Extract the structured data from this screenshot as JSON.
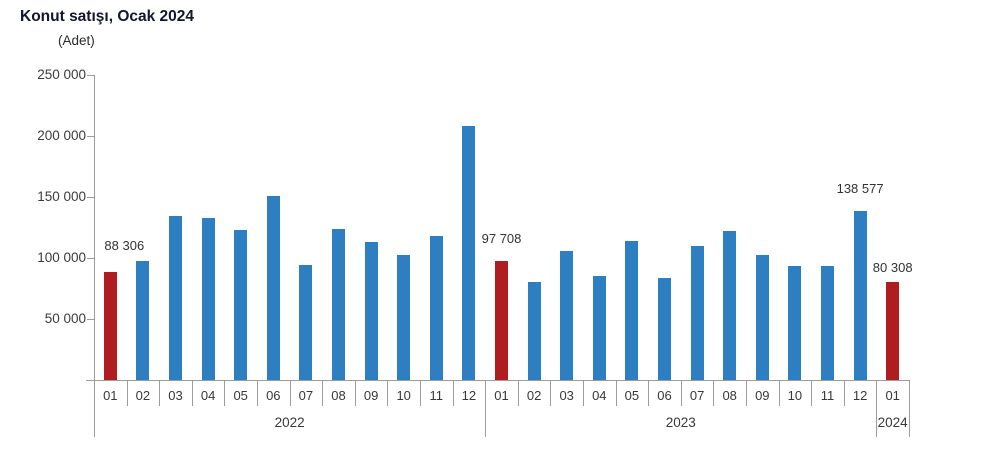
{
  "page": {
    "title": "Konut satışı, Ocak 2024",
    "unit_label": "(Adet)"
  },
  "colors": {
    "bar_default": "#2d7fc1",
    "bar_highlight": "#b01d21",
    "axis_line": "#9c9c9c",
    "tick_text": "#3b3b3b",
    "annotation_text": "#333333",
    "title_text": "#14142e"
  },
  "chart_data": {
    "type": "bar",
    "title": "Konut satışı, Ocak 2024",
    "ylabel": "(Adet)",
    "xlabel": "",
    "ylim": [
      0,
      250000
    ],
    "ytick_interval": 50000,
    "grid": false,
    "legend": "none",
    "yticks": [
      {
        "value": 250000,
        "label": "250 000"
      },
      {
        "value": 200000,
        "label": "200 000"
      },
      {
        "value": 150000,
        "label": "150 000"
      },
      {
        "value": 100000,
        "label": "100 000"
      },
      {
        "value": 50000,
        "label": "50 000"
      }
    ],
    "year_groups": [
      {
        "label": "2022",
        "span": 12
      },
      {
        "label": "2023",
        "span": 12
      },
      {
        "label": "2024",
        "span": 1
      }
    ],
    "points": [
      {
        "year": "2022",
        "month": "01",
        "value": 88306,
        "highlight": true,
        "annotation": "88 306",
        "annotation_dx": 14,
        "annotation_dy": -12
      },
      {
        "year": "2022",
        "month": "02",
        "value": 97587,
        "highlight": false
      },
      {
        "year": "2022",
        "month": "03",
        "value": 134170,
        "highlight": false
      },
      {
        "year": "2022",
        "month": "04",
        "value": 133058,
        "highlight": false
      },
      {
        "year": "2022",
        "month": "05",
        "value": 122768,
        "highlight": false
      },
      {
        "year": "2022",
        "month": "06",
        "value": 150509,
        "highlight": false
      },
      {
        "year": "2022",
        "month": "07",
        "value": 93902,
        "highlight": false
      },
      {
        "year": "2022",
        "month": "08",
        "value": 123491,
        "highlight": false
      },
      {
        "year": "2022",
        "month": "09",
        "value": 113366,
        "highlight": false
      },
      {
        "year": "2022",
        "month": "10",
        "value": 102533,
        "highlight": false
      },
      {
        "year": "2022",
        "month": "11",
        "value": 117806,
        "highlight": false
      },
      {
        "year": "2022",
        "month": "12",
        "value": 207963,
        "highlight": false
      },
      {
        "year": "2023",
        "month": "01",
        "value": 97708,
        "highlight": true,
        "annotation": "97 708",
        "annotation_dx": 0,
        "annotation_dy": -8
      },
      {
        "year": "2023",
        "month": "02",
        "value": 80031,
        "highlight": false
      },
      {
        "year": "2023",
        "month": "03",
        "value": 105476,
        "highlight": false
      },
      {
        "year": "2023",
        "month": "04",
        "value": 85652,
        "highlight": false
      },
      {
        "year": "2023",
        "month": "05",
        "value": 113656,
        "highlight": false
      },
      {
        "year": "2023",
        "month": "06",
        "value": 83636,
        "highlight": false
      },
      {
        "year": "2023",
        "month": "07",
        "value": 109548,
        "highlight": false
      },
      {
        "year": "2023",
        "month": "08",
        "value": 122091,
        "highlight": false
      },
      {
        "year": "2023",
        "month": "09",
        "value": 102656,
        "highlight": false
      },
      {
        "year": "2023",
        "month": "10",
        "value": 93761,
        "highlight": false
      },
      {
        "year": "2023",
        "month": "11",
        "value": 93514,
        "highlight": false
      },
      {
        "year": "2023",
        "month": "12",
        "value": 138577,
        "highlight": false,
        "annotation": "138 577",
        "annotation_dx": 0,
        "annotation_dy": -8
      },
      {
        "year": "2024",
        "month": "01",
        "value": 80308,
        "highlight": true,
        "annotation": "80 308",
        "annotation_dx": 0,
        "annotation_dy": 0
      }
    ]
  }
}
